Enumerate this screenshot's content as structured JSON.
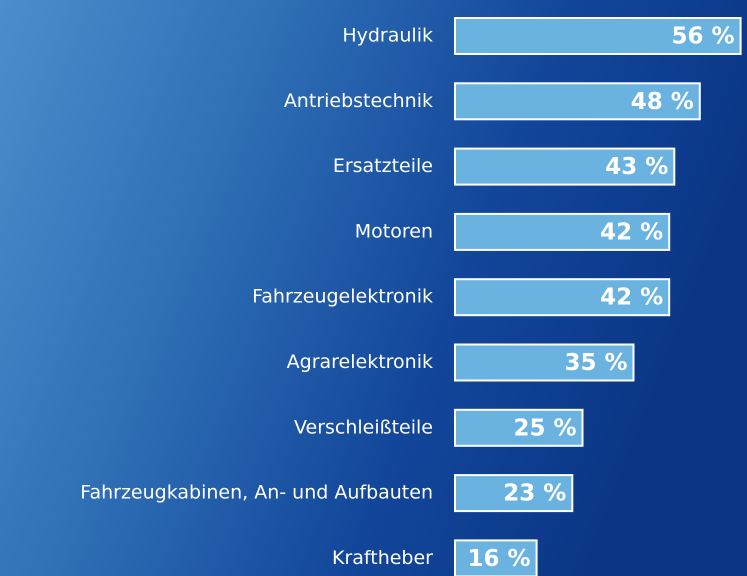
{
  "chart_data": {
    "type": "bar",
    "orientation": "horizontal",
    "categories": [
      "Hydraulik",
      "Antriebstechnik",
      "Ersatzteile",
      "Motoren",
      "Fahrzeugelektronik",
      "Agrarelektronik",
      "Verschleißteile",
      "Fahrzeugkabinen, An- und Aufbauten",
      "Kraftheber"
    ],
    "values": [
      56,
      48,
      43,
      42,
      42,
      35,
      25,
      23,
      16
    ],
    "value_labels": [
      "56 %",
      "48 %",
      "43 %",
      "42 %",
      "42 %",
      "35 %",
      "25 %",
      "23 %",
      "16 %"
    ],
    "color": "#6ab3e0"
  }
}
